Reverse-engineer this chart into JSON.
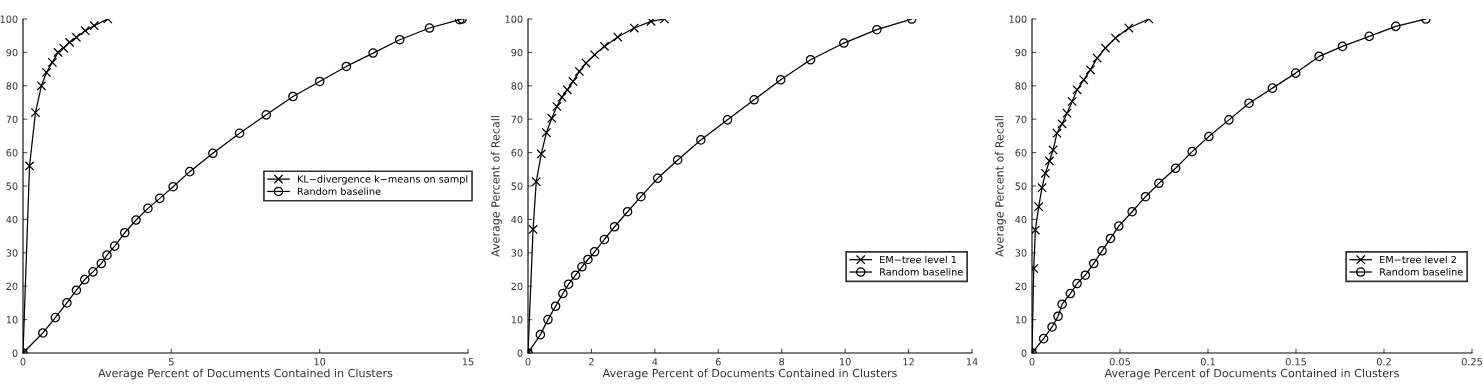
{
  "chart_data": [
    {
      "type": "line",
      "xlabel": "Average Percent of Documents Contained in Clusters",
      "xlim": [
        0,
        15
      ],
      "xticks": [
        0,
        5,
        10,
        15
      ],
      "ylim": [
        0,
        100
      ],
      "yticks": [
        0,
        10,
        20,
        30,
        40,
        50,
        60,
        70,
        80,
        90,
        100
      ],
      "grid": false,
      "legend": "right",
      "series": [
        {
          "name": "KL−divergence k−means on sampl",
          "color": "#000000",
          "marker": "cross",
          "x": [
            0,
            0.22,
            0.42,
            0.62,
            0.79,
            0.99,
            1.18,
            1.37,
            1.57,
            1.8,
            2.1,
            2.4,
            2.86
          ],
          "values": [
            0,
            56,
            72,
            80,
            84,
            87,
            90,
            91.3,
            93,
            94.5,
            96.5,
            98,
            100
          ]
        },
        {
          "name": "Random baseline",
          "color": "#000000",
          "marker": "circle",
          "x": [
            0,
            0.67,
            1.09,
            1.48,
            1.8,
            2.08,
            2.36,
            2.64,
            2.83,
            3.09,
            3.43,
            3.81,
            4.21,
            4.61,
            5.06,
            5.62,
            6.4,
            7.3,
            8.2,
            9.1,
            10.0,
            10.9,
            11.8,
            12.7,
            13.7,
            14.72,
            14.8
          ],
          "values": [
            0,
            6,
            10.6,
            15,
            18.8,
            22,
            24.3,
            26.8,
            29.3,
            32,
            36,
            39.8,
            43.3,
            46.3,
            49.8,
            54.3,
            59.8,
            65.8,
            71.3,
            76.8,
            81.3,
            85.8,
            89.8,
            93.8,
            97.3,
            99.8,
            100
          ]
        }
      ]
    },
    {
      "type": "line",
      "xlabel": "Average Percent of Documents Contained in Clusters",
      "ylabel": "Average Percent of Recall",
      "xlim": [
        0,
        14
      ],
      "xticks": [
        0,
        2,
        4,
        6,
        8,
        10,
        12,
        14
      ],
      "ylim": [
        0,
        100
      ],
      "yticks": [
        0,
        10,
        20,
        30,
        40,
        50,
        60,
        70,
        80,
        90,
        100
      ],
      "grid": false,
      "legend": "bottom right",
      "series": [
        {
          "name": "EM−tree level 1",
          "color": "#000000",
          "marker": "cross",
          "x": [
            0,
            0.16,
            0.26,
            0.42,
            0.58,
            0.75,
            0.91,
            1.07,
            1.24,
            1.42,
            1.62,
            1.83,
            2.1,
            2.41,
            2.83,
            3.35,
            3.88,
            4.3
          ],
          "values": [
            0,
            37,
            51.3,
            59.6,
            66,
            70.3,
            73.8,
            76.6,
            78.8,
            81.3,
            84.3,
            86.8,
            89.3,
            91.8,
            94.6,
            97.3,
            99.3,
            100
          ]
        },
        {
          "name": "Random baseline",
          "color": "#000000",
          "marker": "circle",
          "x": [
            0,
            0.39,
            0.63,
            0.87,
            1.1,
            1.28,
            1.5,
            1.7,
            1.89,
            2.1,
            2.41,
            2.73,
            3.14,
            3.56,
            4.09,
            4.72,
            5.45,
            6.29,
            7.13,
            7.97,
            8.91,
            9.96,
            11.0,
            12.1
          ],
          "values": [
            0,
            5.5,
            10,
            14,
            17.8,
            20.6,
            23.3,
            25.8,
            28,
            30.3,
            34,
            37.8,
            42.3,
            46.8,
            52.3,
            57.8,
            63.8,
            69.8,
            75.8,
            81.8,
            87.8,
            92.8,
            96.8,
            100
          ]
        }
      ]
    },
    {
      "type": "line",
      "xlabel": "Average Percent of Documents Contained in Clusters",
      "ylabel": "Average Percent of Recall",
      "xlim": [
        0,
        0.25
      ],
      "xticks": [
        0,
        0.05,
        0.1,
        0.15,
        0.2,
        0.25
      ],
      "ylim": [
        0,
        100
      ],
      "yticks": [
        0,
        10,
        20,
        30,
        40,
        50,
        60,
        70,
        80,
        90,
        100
      ],
      "grid": false,
      "legend": "bottom right",
      "series": [
        {
          "name": "EM−tree level 2",
          "color": "#000000",
          "marker": "cross",
          "x": [
            0,
            0.001,
            0.0019,
            0.0038,
            0.0057,
            0.0076,
            0.0099,
            0.012,
            0.0142,
            0.0171,
            0.0199,
            0.0228,
            0.0256,
            0.0294,
            0.0332,
            0.037,
            0.0417,
            0.0474,
            0.055,
            0.0664
          ],
          "values": [
            0,
            25.3,
            36.8,
            43.8,
            49.5,
            53.8,
            57.5,
            60.8,
            65.8,
            68.6,
            71.8,
            75.3,
            78.8,
            81.8,
            84.8,
            88.3,
            91.3,
            94.3,
            97.3,
            100
          ]
        },
        {
          "name": "Random baseline",
          "color": "#000000",
          "marker": "circle",
          "x": [
            0,
            0.0066,
            0.0114,
            0.0148,
            0.0171,
            0.0218,
            0.0256,
            0.0303,
            0.0351,
            0.0398,
            0.0446,
            0.0493,
            0.0569,
            0.0645,
            0.0721,
            0.0816,
            0.091,
            0.1005,
            0.1119,
            0.1233,
            0.1366,
            0.1498,
            0.1631,
            0.1764,
            0.1916,
            0.2067,
            0.2238
          ],
          "values": [
            0,
            4.3,
            7.8,
            11,
            14.6,
            17.8,
            20.8,
            23.3,
            26.8,
            30.6,
            34.3,
            38,
            42.3,
            46.8,
            50.8,
            55.3,
            60.3,
            64.8,
            69.8,
            74.8,
            79.3,
            83.8,
            88.8,
            91.8,
            94.8,
            97.8,
            100
          ]
        }
      ]
    }
  ]
}
